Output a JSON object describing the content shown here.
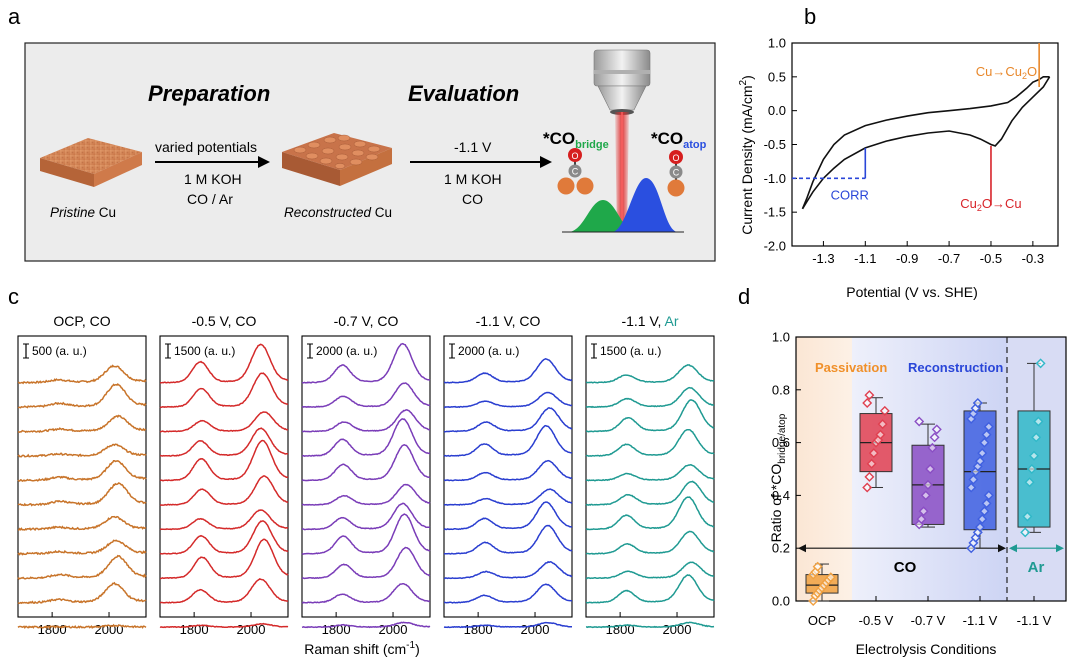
{
  "panel_a": {
    "letter": "a",
    "heading_prep": "Preparation",
    "heading_eval": "Evaluation",
    "arrow1_top": "varied potentials",
    "arrow1_bottom1": "1 M KOH",
    "arrow1_bottom2": "CO / Ar",
    "arrow2_top": "-1.1 V",
    "arrow2_bottom1": "1 M KOH",
    "arrow2_bottom2": "CO",
    "pristine_italic": "Pristine",
    "pristine_rest": " Cu",
    "recon_italic": "Reconstructed",
    "recon_rest": " Cu",
    "co_bridge_main": "*CO",
    "co_bridge_sub": "bridge",
    "co_atop_main": "*CO",
    "co_atop_sub": "atop",
    "atom_o": "O",
    "atom_c": "C",
    "colors": {
      "bridge": "#1fa84a",
      "atop": "#2a4fe0",
      "copper": "#e07a3a",
      "oxygen": "#d61f1f",
      "carbon": "#7f7f7f",
      "laser": "#e03030"
    }
  },
  "panel_b": {
    "letter": "b",
    "chart_data": {
      "type": "line",
      "xlabel": "Potential (V vs. SHE)",
      "ylabel_main": "Current Density (mA/cm",
      "ylabel_sup": "2",
      "ylabel_close": ")",
      "xlim": [
        -1.45,
        -0.18
      ],
      "ylim": [
        -2.0,
        1.0
      ],
      "xticks": [
        -1.3,
        -1.1,
        -0.9,
        -0.7,
        -0.5,
        -0.3
      ],
      "yticks": [
        -2.0,
        -1.5,
        -1.0,
        -0.5,
        0.0,
        0.5,
        1.0
      ],
      "cathodic_sweep": {
        "x": [
          -0.22,
          -0.25,
          -0.3,
          -0.35,
          -0.4,
          -0.45,
          -0.48,
          -0.5,
          -0.55,
          -0.6,
          -0.7,
          -0.8,
          -0.9,
          -1.0,
          -1.1,
          -1.2,
          -1.25,
          -1.3,
          -1.35,
          -1.38,
          -1.4
        ],
        "y": [
          0.5,
          0.35,
          0.2,
          0.05,
          -0.15,
          -0.42,
          -0.52,
          -0.5,
          -0.42,
          -0.36,
          -0.3,
          -0.33,
          -0.38,
          -0.45,
          -0.55,
          -0.72,
          -0.85,
          -1.0,
          -1.2,
          -1.35,
          -1.45
        ]
      },
      "anodic_sweep": {
        "x": [
          -1.4,
          -1.38,
          -1.35,
          -1.3,
          -1.25,
          -1.2,
          -1.1,
          -1.0,
          -0.9,
          -0.8,
          -0.7,
          -0.6,
          -0.5,
          -0.42,
          -0.38,
          -0.33,
          -0.3,
          -0.27,
          -0.25,
          -0.22
        ],
        "y": [
          -1.45,
          -1.3,
          -1.05,
          -0.72,
          -0.5,
          -0.36,
          -0.22,
          -0.14,
          -0.08,
          -0.03,
          0.0,
          0.03,
          0.07,
          0.12,
          0.2,
          0.33,
          0.42,
          0.46,
          0.5,
          0.5
        ]
      },
      "annotations": [
        {
          "text_main": "Cu→Cu",
          "text_sub": "2",
          "text_end": "O",
          "color": "#e8872a",
          "x": -0.27,
          "y": 0.6
        },
        {
          "text_main": "Cu",
          "text_sub": "2",
          "text_end": "O→Cu",
          "color": "#d8242a",
          "x": -0.5,
          "y": -1.55
        },
        {
          "text_main": "CORR",
          "text_sub": "",
          "text_end": "",
          "color": "#2a46d8",
          "x": -1.26,
          "y": -1.25
        }
      ],
      "markers": [
        {
          "x": -0.27,
          "y_from": 0.35,
          "y_to": 1.0,
          "color": "#e8872a"
        },
        {
          "x": -0.5,
          "y_from": -1.4,
          "y_to": -0.52,
          "color": "#d8242a"
        },
        {
          "x": -1.1,
          "y_from": -1.0,
          "y_to": -0.55,
          "color": "#2a46d8"
        }
      ],
      "reference_line": {
        "y": -1.0,
        "x_from": -1.45,
        "x_to": -1.1,
        "color": "#2a46d8"
      }
    }
  },
  "panel_c": {
    "letter": "c",
    "chart_data": {
      "type": "line",
      "xlabel_main": "Raman shift (cm",
      "xlabel_sup": "-1",
      "xlabel_close": ")",
      "xlim": [
        1680,
        2130
      ],
      "xticks": [
        1800,
        2000
      ],
      "spectra_per_panel": 11,
      "panels": [
        {
          "title": "OCP, CO",
          "title_suffix": "",
          "scale": "500 (a. u.)",
          "color": "#c8742a",
          "bridge_amp": 0.08,
          "atop_amp": 0.55,
          "atop_pos": 2025
        },
        {
          "title": "-0.5 V, CO",
          "title_suffix": "",
          "scale": "1500 (a. u.)",
          "color": "#d42a2a",
          "bridge_amp": 0.55,
          "atop_amp": 1.0,
          "atop_pos": 2040
        },
        {
          "title": "-0.7 V, CO",
          "title_suffix": "",
          "scale": "2000 (a. u.)",
          "color": "#7a3db8",
          "bridge_amp": 0.45,
          "atop_amp": 1.0,
          "atop_pos": 2040
        },
        {
          "title": "-1.1 V, CO",
          "title_suffix": "",
          "scale": "2000 (a. u.)",
          "color": "#2a3ed0",
          "bridge_amp": 0.3,
          "atop_amp": 0.75,
          "atop_pos": 2045
        },
        {
          "title": "-1.1 V, ",
          "title_suffix": "Ar",
          "scale": "1500 (a. u.)",
          "color": "#1f9a92",
          "bridge_amp": 0.35,
          "atop_amp": 0.8,
          "atop_pos": 2045
        }
      ]
    }
  },
  "panel_d": {
    "letter": "d",
    "chart_data": {
      "type": "box",
      "ylabel_main": "Ratio of *CO",
      "ylabel_sub": "bridge/atop",
      "xlabel": "Electrolysis Conditions",
      "ylim": [
        0.0,
        1.0
      ],
      "yticks": [
        0.0,
        0.2,
        0.4,
        0.6,
        0.8,
        1.0
      ],
      "categories": [
        "OCP",
        "-0.5 V",
        "-0.7 V",
        "-1.1 V",
        "-1.1 V"
      ],
      "region_passivation": "Passivation",
      "region_reconstruction": "Reconstruction",
      "group_co": "CO",
      "group_ar": "Ar",
      "boxes": [
        {
          "color": "#f0a040",
          "q1": 0.03,
          "median": 0.06,
          "q3": 0.1,
          "whisker_low": 0.0,
          "whisker_high": 0.14,
          "points": [
            0.0,
            0.02,
            0.03,
            0.04,
            0.05,
            0.06,
            0.07,
            0.08,
            0.09,
            0.1,
            0.11,
            0.13
          ]
        },
        {
          "color": "#e04050",
          "q1": 0.49,
          "median": 0.6,
          "q3": 0.71,
          "whisker_low": 0.43,
          "whisker_high": 0.77,
          "points": [
            0.43,
            0.47,
            0.52,
            0.56,
            0.6,
            0.61,
            0.63,
            0.67,
            0.72,
            0.75,
            0.78
          ]
        },
        {
          "color": "#8a4ec4",
          "q1": 0.29,
          "median": 0.44,
          "q3": 0.59,
          "whisker_low": 0.28,
          "whisker_high": 0.67,
          "points": [
            0.29,
            0.31,
            0.34,
            0.4,
            0.44,
            0.5,
            0.58,
            0.62,
            0.65,
            0.68
          ]
        },
        {
          "color": "#4060e0",
          "q1": 0.27,
          "median": 0.49,
          "q3": 0.72,
          "whisker_low": 0.2,
          "whisker_high": 0.75,
          "points": [
            0.2,
            0.22,
            0.24,
            0.26,
            0.28,
            0.31,
            0.34,
            0.37,
            0.4,
            0.43,
            0.46,
            0.49,
            0.51,
            0.53,
            0.56,
            0.6,
            0.63,
            0.66,
            0.69,
            0.71,
            0.73,
            0.75
          ]
        },
        {
          "color": "#30b8c8",
          "q1": 0.28,
          "median": 0.5,
          "q3": 0.72,
          "whisker_low": 0.26,
          "whisker_high": 0.9,
          "points": [
            0.26,
            0.32,
            0.45,
            0.5,
            0.55,
            0.62,
            0.68,
            0.9
          ]
        }
      ]
    }
  }
}
